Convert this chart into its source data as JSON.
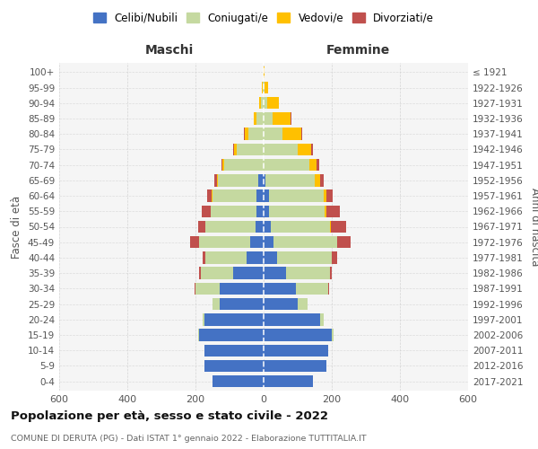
{
  "age_groups": [
    "0-4",
    "5-9",
    "10-14",
    "15-19",
    "20-24",
    "25-29",
    "30-34",
    "35-39",
    "40-44",
    "45-49",
    "50-54",
    "55-59",
    "60-64",
    "65-69",
    "70-74",
    "75-79",
    "80-84",
    "85-89",
    "90-94",
    "95-99",
    "100+"
  ],
  "birth_years": [
    "2017-2021",
    "2012-2016",
    "2007-2011",
    "2002-2006",
    "1997-2001",
    "1992-1996",
    "1987-1991",
    "1982-1986",
    "1977-1981",
    "1972-1976",
    "1967-1971",
    "1962-1966",
    "1957-1961",
    "1952-1956",
    "1947-1951",
    "1942-1946",
    "1937-1941",
    "1932-1936",
    "1927-1931",
    "1922-1926",
    "≤ 1921"
  ],
  "maschi": {
    "celibi": [
      150,
      175,
      175,
      190,
      175,
      130,
      130,
      90,
      50,
      40,
      25,
      20,
      20,
      15,
      0,
      0,
      0,
      0,
      0,
      0,
      0
    ],
    "coniugati": [
      0,
      0,
      0,
      3,
      5,
      20,
      70,
      95,
      120,
      150,
      145,
      135,
      130,
      120,
      115,
      80,
      45,
      20,
      8,
      3,
      1
    ],
    "vedovi": [
      0,
      0,
      0,
      0,
      0,
      0,
      0,
      0,
      0,
      0,
      1,
      1,
      2,
      3,
      5,
      8,
      10,
      10,
      5,
      2,
      0
    ],
    "divorziati": [
      0,
      0,
      0,
      0,
      0,
      0,
      2,
      5,
      10,
      25,
      20,
      25,
      15,
      8,
      5,
      2,
      2,
      0,
      0,
      0,
      0
    ]
  },
  "femmine": {
    "nubili": [
      145,
      185,
      190,
      200,
      165,
      100,
      95,
      65,
      40,
      30,
      20,
      15,
      15,
      5,
      0,
      0,
      0,
      0,
      0,
      0,
      0
    ],
    "coniugate": [
      0,
      0,
      0,
      5,
      10,
      30,
      95,
      130,
      160,
      185,
      175,
      165,
      160,
      145,
      135,
      100,
      55,
      25,
      10,
      2,
      1
    ],
    "vedove": [
      0,
      0,
      0,
      0,
      0,
      0,
      0,
      0,
      0,
      0,
      2,
      4,
      8,
      15,
      20,
      40,
      55,
      55,
      35,
      10,
      2
    ],
    "divorziate": [
      0,
      0,
      0,
      0,
      0,
      0,
      2,
      5,
      15,
      40,
      45,
      40,
      20,
      12,
      8,
      5,
      3,
      2,
      0,
      0,
      0
    ]
  },
  "colors": {
    "celibi_nubili": "#4472c4",
    "coniugati": "#c5d9a0",
    "vedovi": "#ffc000",
    "divorziati": "#c0504d"
  },
  "title": "Popolazione per età, sesso e stato civile - 2022",
  "subtitle": "COMUNE DI DERUTA (PG) - Dati ISTAT 1° gennaio 2022 - Elaborazione TUTTITALIA.IT",
  "xlabel_left": "Maschi",
  "xlabel_right": "Femmine",
  "ylabel_left": "Fasce di età",
  "ylabel_right": "Anni di nascita",
  "xlim": 600,
  "background_color": "#ffffff",
  "plot_bg_color": "#f5f5f5",
  "legend_labels": [
    "Celibi/Nubili",
    "Coniugati/e",
    "Vedovi/e",
    "Divorziati/e"
  ]
}
